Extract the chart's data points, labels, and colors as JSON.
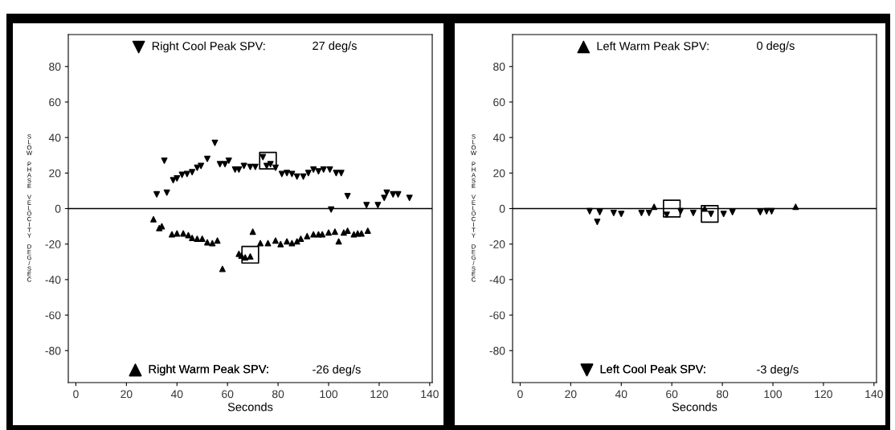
{
  "chart_data": [
    {
      "type": "scatter",
      "xlabel": "Seconds",
      "ylabel": "SLOW PHASE VELOCITY DEG/SEC",
      "xlim": [
        -3,
        141
      ],
      "ylim": [
        -98,
        98
      ],
      "xticks": [
        0,
        20,
        40,
        60,
        80,
        100,
        120,
        140
      ],
      "yticks": [
        -80,
        -60,
        -40,
        -20,
        0,
        20,
        40,
        60,
        80
      ],
      "grid": false,
      "legend": "top",
      "annotations": [
        "27 deg/s",
        "-26 deg/s"
      ],
      "ref_lines": [
        {
          "axis": "y",
          "value": 0,
          "color": "#000000"
        }
      ],
      "series": [
        {
          "name": "Right Cool Peak SPV:",
          "color": "#000000",
          "marker": "triangle_down",
          "x": [
            32,
            36,
            35,
            38.5,
            40,
            42,
            44,
            46,
            48,
            49.5,
            52,
            55,
            57,
            59,
            60.5,
            63,
            64.5,
            66.5,
            69,
            71,
            74,
            75.5,
            77,
            79,
            81.5,
            83.5,
            85.5,
            87.5,
            90,
            92,
            94,
            96,
            98,
            100.5,
            101,
            103,
            105,
            107.5,
            115,
            119.5,
            122,
            123,
            125.5,
            127.5,
            132
          ],
          "values": [
            8,
            9,
            27,
            16,
            17,
            19,
            19.5,
            20.5,
            23,
            24,
            28,
            37,
            25,
            25,
            27,
            22,
            22,
            24,
            23.5,
            23.5,
            29,
            24,
            25,
            23,
            19.5,
            20,
            19.5,
            18,
            18,
            20,
            22,
            21,
            22,
            22,
            -0.5,
            20,
            20,
            7,
            2,
            2,
            6,
            9,
            8,
            8,
            6
          ]
        },
        {
          "name": "Right Warm Peak SPV:",
          "color": "#000000",
          "marker": "triangle",
          "x": [
            30.7,
            33,
            34,
            38,
            40,
            42.5,
            44.5,
            46,
            48,
            50,
            52,
            54,
            56,
            58,
            64.5,
            65.5,
            67,
            69,
            70,
            73,
            76,
            79,
            81,
            83.5,
            85.5,
            87.5,
            89,
            91.5,
            94,
            96,
            97.5,
            100,
            102.5,
            104,
            106,
            107.5,
            110,
            111.5,
            113,
            115.5
          ],
          "values": [
            -6,
            -11,
            -10,
            -14.5,
            -14,
            -14,
            -15,
            -16.5,
            -17,
            -17,
            -19,
            -19.5,
            -18,
            -34,
            -25.5,
            -26.5,
            -27.5,
            -27,
            -13,
            -19.5,
            -19.5,
            -18,
            -20,
            -18.5,
            -19.5,
            -18.5,
            -17,
            -15.5,
            -14.5,
            -14.5,
            -14.5,
            -13.5,
            -13,
            -18.5,
            -13.5,
            -12.5,
            -14.5,
            -14,
            -14,
            -12.5
          ]
        },
        {
          "type": "scatter",
          "color": "#000000",
          "marker": "square",
          "x": [
            76,
            69
          ],
          "values": [
            27,
            -26
          ]
        }
      ]
    },
    {
      "type": "scatter",
      "xlabel": "Seconds",
      "ylabel": "SLOW PHASE VELOCITY DEG/SEC",
      "xlim": [
        -3,
        141
      ],
      "ylim": [
        -98,
        98
      ],
      "xticks": [
        0,
        20,
        40,
        60,
        80,
        100,
        120,
        140
      ],
      "yticks": [
        -80,
        -60,
        -40,
        -20,
        0,
        20,
        40,
        60,
        80
      ],
      "grid": false,
      "legend": "top",
      "annotations": [
        "0 deg/s",
        "-3 deg/s"
      ],
      "ref_lines": [
        {
          "axis": "y",
          "value": 0,
          "color": "#000000"
        }
      ],
      "series": [
        {
          "name": "Left Warm Peak SPV:",
          "color": "#000000",
          "marker": "triangle",
          "x": [
            53,
            73,
            109
          ],
          "values": [
            1,
            0,
            1
          ]
        },
        {
          "name": "Left Cool Peak SPV:",
          "color": "#000000",
          "marker": "triangle_down",
          "x": [
            27.5,
            30.5,
            31.5,
            37,
            40,
            48,
            51,
            58,
            63.5,
            68.5,
            75.5,
            80.5,
            84,
            95,
            97.5,
            99.5
          ],
          "values": [
            -1.5,
            -7.5,
            -2,
            -2.5,
            -3,
            -2.5,
            -2.5,
            -3.5,
            -1.5,
            -2.5,
            -3,
            -3,
            -2,
            -2,
            -1.5,
            -1.5
          ]
        },
        {
          "type": "scatter",
          "color": "#000000",
          "marker": "square",
          "x": [
            60,
            75
          ],
          "values": [
            0,
            -3
          ]
        }
      ]
    }
  ]
}
